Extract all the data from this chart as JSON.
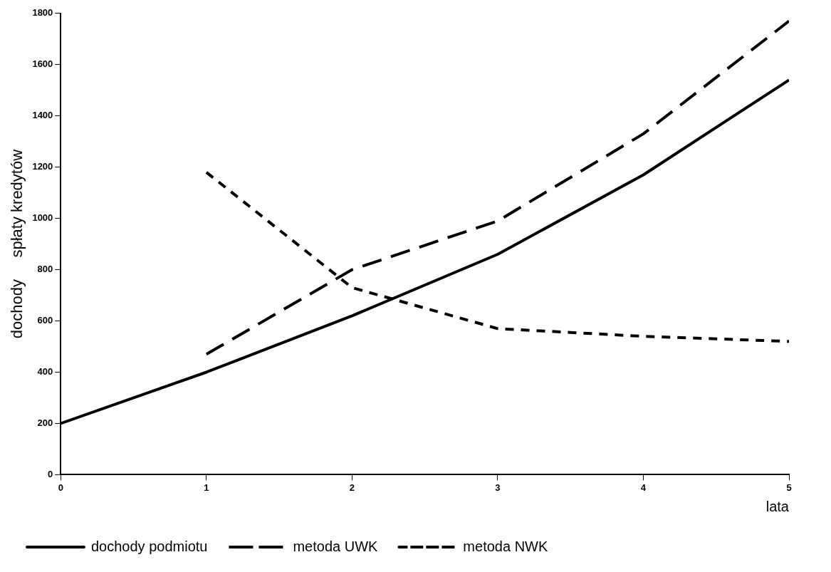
{
  "chart_data": {
    "type": "line",
    "xlabel": "lata",
    "ylabel": "dochody     spłaty kredytów",
    "x": [
      0,
      1,
      2,
      3,
      4,
      5
    ],
    "xlim": [
      0,
      5
    ],
    "xticks": [
      0,
      1,
      2,
      3,
      4,
      5
    ],
    "ylim": [
      0,
      1800
    ],
    "yticks": [
      0,
      200,
      400,
      600,
      800,
      1000,
      1200,
      1400,
      1600,
      1800
    ],
    "grid": false,
    "legend": "bottom",
    "marker": "none",
    "series": [
      {
        "name": "dochody podmiotu",
        "color": "#000000",
        "line_style": "solid",
        "values": [
          200,
          400,
          620,
          860,
          1170,
          1540
        ]
      },
      {
        "name": "metoda UWK",
        "color": "#000000",
        "line_style": "dashed",
        "values": [
          null,
          470,
          800,
          990,
          1330,
          1770
        ]
      },
      {
        "name": "metoda NWK",
        "color": "#000000",
        "line_style": "dotted",
        "values": [
          null,
          1180,
          730,
          570,
          540,
          520
        ]
      }
    ]
  }
}
